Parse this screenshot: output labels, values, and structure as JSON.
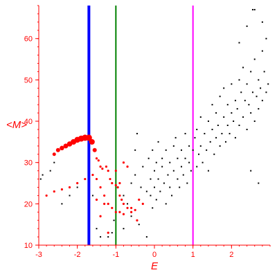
{
  "chart_data": {
    "type": "scatter",
    "xlabel": "E",
    "ylabel": "<M>",
    "xlim": [
      -3,
      3
    ],
    "ylim": [
      10,
      68
    ],
    "x_ticks": [
      -3,
      -2,
      -1,
      0,
      1,
      2
    ],
    "y_ticks": [
      10,
      20,
      30,
      40,
      50,
      60
    ],
    "grid": false,
    "colors": {
      "axis": "#ff0000",
      "tick_text": "#ff0000",
      "scatter": "#000000",
      "highlight": "#ff0000"
    },
    "vertical_lines": [
      {
        "x": -1.7,
        "color": "#0000ff"
      },
      {
        "x": -1.0,
        "color": "#008000"
      },
      {
        "x": 1.0,
        "color": "#ff00ff"
      }
    ],
    "series": [
      {
        "color": "#000000",
        "points": [
          [
            -2.95,
            26
          ],
          [
            -2.9,
            27
          ],
          [
            -2.7,
            28
          ],
          [
            -2.6,
            30
          ],
          [
            -2.4,
            20
          ],
          [
            -2.2,
            22
          ],
          [
            -2.0,
            24
          ],
          [
            -1.8,
            26
          ],
          [
            -1.6,
            22
          ],
          [
            -1.5,
            14
          ],
          [
            -1.4,
            12
          ],
          [
            -1.2,
            12
          ],
          [
            -1.1,
            13
          ],
          [
            -1.05,
            16
          ],
          [
            -0.9,
            18
          ],
          [
            -0.8,
            22
          ],
          [
            -0.8,
            14
          ],
          [
            -0.7,
            20
          ],
          [
            -0.6,
            17
          ],
          [
            -0.6,
            25
          ],
          [
            -0.5,
            27
          ],
          [
            -0.5,
            33
          ],
          [
            -0.45,
            37
          ],
          [
            -0.4,
            15
          ],
          [
            -0.35,
            24
          ],
          [
            -0.3,
            20
          ],
          [
            -0.3,
            29
          ],
          [
            -0.2,
            23
          ],
          [
            -0.2,
            12
          ],
          [
            -0.15,
            31
          ],
          [
            -0.1,
            26
          ],
          [
            -0.1,
            22
          ],
          [
            -0.05,
            19
          ],
          [
            -0.05,
            33
          ],
          [
            0.0,
            24
          ],
          [
            0.0,
            28
          ],
          [
            0.05,
            21
          ],
          [
            0.05,
            30
          ],
          [
            0.1,
            26
          ],
          [
            0.1,
            35
          ],
          [
            0.15,
            23
          ],
          [
            0.2,
            29
          ],
          [
            0.2,
            31
          ],
          [
            0.25,
            25
          ],
          [
            0.3,
            20
          ],
          [
            0.3,
            33
          ],
          [
            0.35,
            27
          ],
          [
            0.4,
            24
          ],
          [
            0.4,
            30
          ],
          [
            0.45,
            22
          ],
          [
            0.5,
            28
          ],
          [
            0.5,
            34
          ],
          [
            0.55,
            36
          ],
          [
            0.6,
            26
          ],
          [
            0.6,
            31
          ],
          [
            0.65,
            24
          ],
          [
            0.7,
            29
          ],
          [
            0.7,
            33
          ],
          [
            0.75,
            27
          ],
          [
            0.8,
            31
          ],
          [
            0.8,
            37
          ],
          [
            0.85,
            25
          ],
          [
            0.9,
            30
          ],
          [
            0.9,
            34
          ],
          [
            0.95,
            28
          ],
          [
            1.0,
            33
          ],
          [
            1.05,
            36
          ],
          [
            1.1,
            29
          ],
          [
            1.1,
            38
          ],
          [
            1.15,
            32
          ],
          [
            1.2,
            34
          ],
          [
            1.2,
            41
          ],
          [
            1.25,
            30
          ],
          [
            1.3,
            37
          ],
          [
            1.35,
            33
          ],
          [
            1.4,
            40
          ],
          [
            1.4,
            28
          ],
          [
            1.45,
            35
          ],
          [
            1.5,
            38
          ],
          [
            1.5,
            44
          ],
          [
            1.55,
            32
          ],
          [
            1.6,
            36
          ],
          [
            1.6,
            42
          ],
          [
            1.65,
            39
          ],
          [
            1.7,
            34
          ],
          [
            1.7,
            46
          ],
          [
            1.75,
            37
          ],
          [
            1.8,
            41
          ],
          [
            1.8,
            48
          ],
          [
            1.85,
            35
          ],
          [
            1.9,
            39
          ],
          [
            1.9,
            44
          ],
          [
            1.95,
            37
          ],
          [
            2.0,
            42
          ],
          [
            2.0,
            49
          ],
          [
            2.05,
            40
          ],
          [
            2.1,
            45
          ],
          [
            2.1,
            36
          ],
          [
            2.15,
            43
          ],
          [
            2.2,
            39
          ],
          [
            2.2,
            50
          ],
          [
            2.25,
            47
          ],
          [
            2.3,
            41
          ],
          [
            2.3,
            53
          ],
          [
            2.35,
            45
          ],
          [
            2.4,
            38
          ],
          [
            2.4,
            49
          ],
          [
            2.45,
            44
          ],
          [
            2.5,
            52
          ],
          [
            2.5,
            42
          ],
          [
            2.55,
            47
          ],
          [
            2.6,
            40
          ],
          [
            2.6,
            55
          ],
          [
            2.65,
            46
          ],
          [
            2.7,
            50
          ],
          [
            2.7,
            43
          ],
          [
            2.75,
            48
          ],
          [
            2.8,
            57
          ],
          [
            2.8,
            45
          ],
          [
            2.85,
            52
          ],
          [
            2.9,
            47
          ],
          [
            2.9,
            60
          ],
          [
            2.95,
            49
          ],
          [
            2.55,
            67
          ],
          [
            2.6,
            67
          ],
          [
            2.8,
            64
          ],
          [
            2.4,
            63
          ],
          [
            2.2,
            59
          ],
          [
            2.7,
            25
          ],
          [
            2.5,
            28
          ]
        ]
      },
      {
        "color": "#ff0000",
        "points": [
          [
            -2.6,
            32
          ],
          [
            -2.5,
            33
          ],
          [
            -2.4,
            33.5
          ],
          [
            -2.3,
            34
          ],
          [
            -2.2,
            34.5
          ],
          [
            -2.1,
            35
          ],
          [
            -2.0,
            35.5
          ],
          [
            -1.9,
            35.8
          ],
          [
            -1.8,
            36
          ],
          [
            -1.7,
            36
          ],
          [
            -1.62,
            35
          ],
          [
            -1.55,
            33
          ],
          [
            -1.5,
            31
          ],
          [
            -1.45,
            30.5
          ],
          [
            -1.4,
            29
          ],
          [
            -1.35,
            28.5
          ],
          [
            -1.25,
            29
          ],
          [
            -1.2,
            28
          ],
          [
            -1.15,
            26
          ],
          [
            -1.1,
            25
          ],
          [
            -1.0,
            24.5
          ],
          [
            -0.95,
            24
          ],
          [
            -0.9,
            22
          ],
          [
            -0.85,
            21
          ],
          [
            -0.8,
            20
          ],
          [
            -0.7,
            19
          ],
          [
            -0.6,
            18
          ],
          [
            -0.5,
            18.5
          ],
          [
            -0.45,
            16
          ],
          [
            -2.8,
            22
          ],
          [
            -2.6,
            23
          ],
          [
            -2.4,
            23.5
          ],
          [
            -2.2,
            24
          ],
          [
            -2.0,
            25
          ],
          [
            -1.8,
            26
          ],
          [
            -1.6,
            27
          ],
          [
            -1.5,
            26
          ],
          [
            -1.4,
            24
          ],
          [
            -1.3,
            22
          ],
          [
            -1.2,
            20
          ],
          [
            -1.1,
            19
          ],
          [
            -1.0,
            18
          ],
          [
            -0.9,
            18
          ],
          [
            -0.8,
            17.5
          ],
          [
            -0.6,
            19
          ],
          [
            -0.4,
            21
          ],
          [
            -0.3,
            20
          ],
          [
            -1.5,
            21
          ],
          [
            -1.4,
            17
          ],
          [
            -1.2,
            13
          ],
          [
            -1.3,
            20
          ],
          [
            -0.9,
            25
          ],
          [
            -1.0,
            28
          ],
          [
            -0.8,
            30
          ],
          [
            -0.7,
            29
          ]
        ]
      }
    ]
  }
}
